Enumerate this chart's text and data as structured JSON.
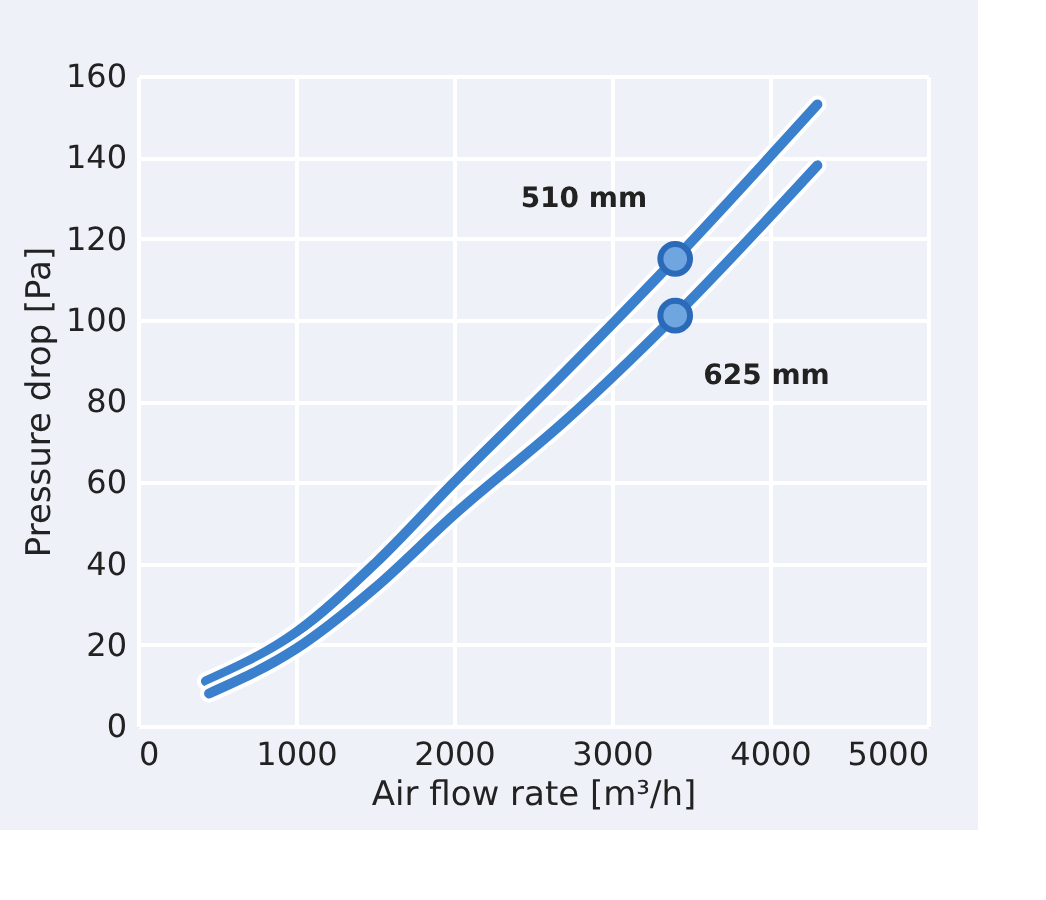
{
  "chart_data": {
    "type": "line",
    "xlabel": "Air flow rate [m³/h]",
    "ylabel": "Pressure drop [Pa]",
    "xlim": [
      0,
      5000
    ],
    "ylim": [
      0,
      160
    ],
    "xticks": [
      0,
      1000,
      2000,
      3000,
      4000,
      5000
    ],
    "yticks": [
      0,
      20,
      40,
      60,
      80,
      100,
      120,
      140,
      160
    ],
    "grid": true,
    "line_style": "solid",
    "marker": "none",
    "series": [
      {
        "name": "510 mm",
        "color": "#3a80cc",
        "x": [
          430,
          1000,
          1500,
          2000,
          2700,
          3400,
          4300
        ],
        "values": [
          11,
          23,
          40,
          60,
          87,
          115,
          153
        ]
      },
      {
        "name": "625 mm",
        "color": "#3a80cc",
        "x": [
          450,
          1000,
          1500,
          2000,
          2700,
          3400,
          4300
        ],
        "values": [
          8,
          19,
          34,
          52,
          75,
          101,
          138
        ]
      },
      {
        "type": "scatter",
        "marker": "circle",
        "color": "#6fa6e0",
        "x": [
          3400,
          3400
        ],
        "values": [
          115,
          101
        ]
      }
    ]
  }
}
